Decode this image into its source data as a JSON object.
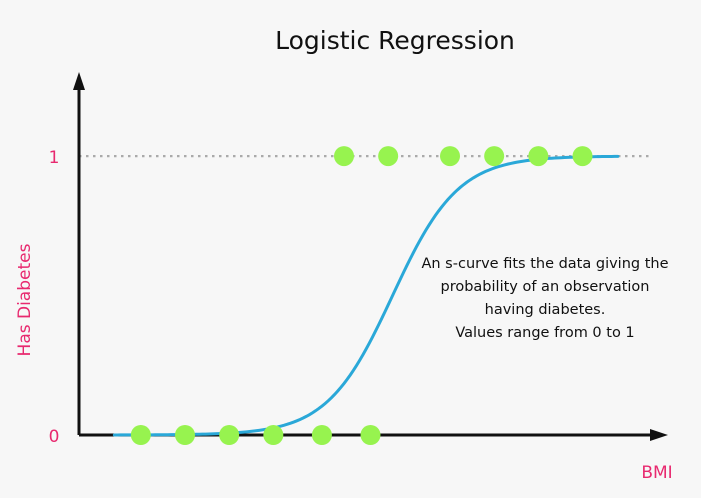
{
  "chart_data": {
    "type": "scatter",
    "title": "Logistic Regression",
    "xlabel": "BMI",
    "ylabel": "Has Diabetes",
    "y_ticks": [
      {
        "value": 0,
        "label": "0"
      },
      {
        "value": 1,
        "label": "1"
      }
    ],
    "xlim": [
      0,
      13.2
    ],
    "ylim": [
      0,
      1.28
    ],
    "grid": false,
    "legend": "none",
    "reference_line": {
      "y": 1,
      "style": "dotted"
    },
    "points": [
      {
        "x": 1.4,
        "y": 0
      },
      {
        "x": 2.4,
        "y": 0
      },
      {
        "x": 3.4,
        "y": 0
      },
      {
        "x": 4.4,
        "y": 0
      },
      {
        "x": 5.5,
        "y": 0
      },
      {
        "x": 6.6,
        "y": 0
      },
      {
        "x": 6.0,
        "y": 1
      },
      {
        "x": 7.0,
        "y": 1
      },
      {
        "x": 8.4,
        "y": 1
      },
      {
        "x": 9.4,
        "y": 1
      },
      {
        "x": 10.4,
        "y": 1
      },
      {
        "x": 11.4,
        "y": 1
      }
    ],
    "curve": {
      "type": "logistic",
      "midpoint": 7.1,
      "steepness": 1.35,
      "x_range": [
        0.8,
        12.2
      ]
    },
    "annotation": [
      "An s-curve fits the data giving the",
      "probability of an observation",
      "having diabetes.",
      "Values range from 0 to 1"
    ],
    "colors": {
      "points": "#97f34f",
      "curve": "#2aa8d8",
      "axis": "#111111",
      "labels": "#e8296f",
      "dotted_line": "#aaaaaa",
      "background": "#f7f7f7"
    }
  }
}
